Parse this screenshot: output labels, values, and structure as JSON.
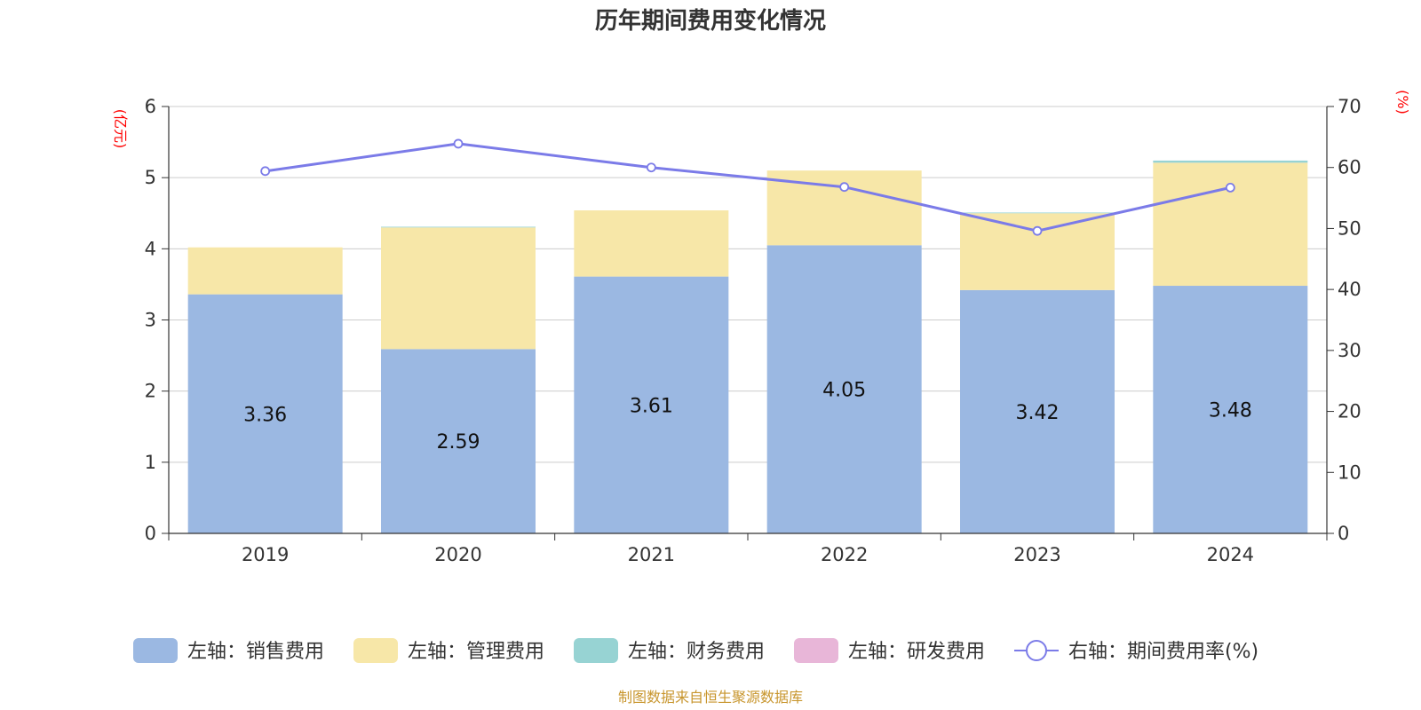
{
  "chart_data": {
    "type": "bar",
    "title": "历年期间费用变化情况",
    "categories": [
      "2019",
      "2020",
      "2021",
      "2022",
      "2023",
      "2024"
    ],
    "left_axis": {
      "unit_label": "(亿元)",
      "range": [
        0,
        6
      ],
      "ticks": [
        "0",
        "1",
        "2",
        "3",
        "4",
        "5",
        "6"
      ]
    },
    "right_axis": {
      "unit_label": "(%)",
      "range": [
        0,
        70
      ],
      "ticks": [
        "0",
        "10",
        "20",
        "30",
        "40",
        "50",
        "60",
        "70"
      ]
    },
    "series": [
      {
        "name": "左轴：销售费用",
        "type": "bar",
        "axis": "left",
        "color": "#9bb8e2",
        "values": [
          3.36,
          2.59,
          3.61,
          4.05,
          3.42,
          3.48
        ],
        "labels": [
          "3.36",
          "2.59",
          "3.61",
          "4.05",
          "3.42",
          "3.48"
        ]
      },
      {
        "name": "左轴：管理费用",
        "type": "bar",
        "axis": "left",
        "color": "#f7e7a8",
        "values": [
          0.66,
          1.71,
          0.93,
          1.05,
          1.08,
          1.73
        ]
      },
      {
        "name": "左轴：财务费用",
        "type": "bar",
        "axis": "left",
        "color": "#97d3d3",
        "values": [
          0.0,
          0.01,
          0.0,
          0.0,
          0.01,
          0.03
        ]
      },
      {
        "name": "左轴：研发费用",
        "type": "bar",
        "axis": "left",
        "color": "#e8b6d8",
        "values": [
          0,
          0,
          0,
          0,
          0,
          0
        ]
      },
      {
        "name": "右轴：期间费用率(%)",
        "type": "line",
        "axis": "right",
        "color": "#7b7be8",
        "values": [
          59.4,
          63.9,
          60.0,
          56.8,
          49.6,
          56.7
        ]
      }
    ],
    "grid": true,
    "legend_position": "bottom"
  },
  "source_text": "制图数据来自恒生聚源数据库"
}
